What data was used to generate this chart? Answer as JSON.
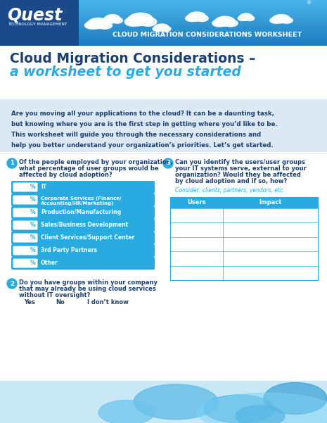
{
  "header_bg_color": "#1e87c8",
  "header_sky_color": "#1a7ac0",
  "header_left_color": "#1a4a8a",
  "header_text": "CLOUD MIGRATION CONSIDERATIONS WORKSHEET",
  "title_line1": "Cloud Migration Considerations –",
  "title_line2": "a worksheet to get you started",
  "intro_bg": "#dce9f5",
  "intro_text_line1": "Are you moving all your applications to the cloud? It can be a daunting task,",
  "intro_text_line2": "but knowing where you are is the first step in getting where you’d like to be.",
  "intro_text_line3": "This worksheet will guide you through the necessary considerations and",
  "intro_text_line4": "help you better understand your organization’s priorities. Let’s get started.",
  "q1_label_lines": [
    "Of the people employed by your organization,",
    "what percentage of user groups would be",
    "affected by cloud adoption?"
  ],
  "q1_items": [
    "IT",
    "Corporate Services (Finance/Accounting/HR/Marketing)",
    "Production/Manufacturing",
    "Sales/Business Development",
    "Client Services/Support Center",
    "3rd Party Partners",
    "Other"
  ],
  "q2_label_lines": [
    "Do you have groups within your company",
    "that may already be using cloud services",
    "without IT oversight?"
  ],
  "q2_options": [
    "Yes",
    "No",
    "I don’t know"
  ],
  "q3_label_lines": [
    "Can you identify the users/user groups",
    "your IT systems serve, external to your",
    "organization? Would they be affected",
    "by cloud adoption and if so, how?"
  ],
  "q3_italic": "Consider: clients, partners, vendors, etc.",
  "q3_headers": [
    "Users",
    "Impact"
  ],
  "bar_color": "#29abe2",
  "number_circle_color": "#29abe2",
  "text_dark": "#1a3f6f",
  "text_medium": "#1a5a9a",
  "white": "#ffffff",
  "page_bg": "#ffffff",
  "bottom_cloud1_color": "#5bc8f0",
  "bottom_cloud2_color": "#82d4f5",
  "bottom_bg": "#b8e4f7"
}
